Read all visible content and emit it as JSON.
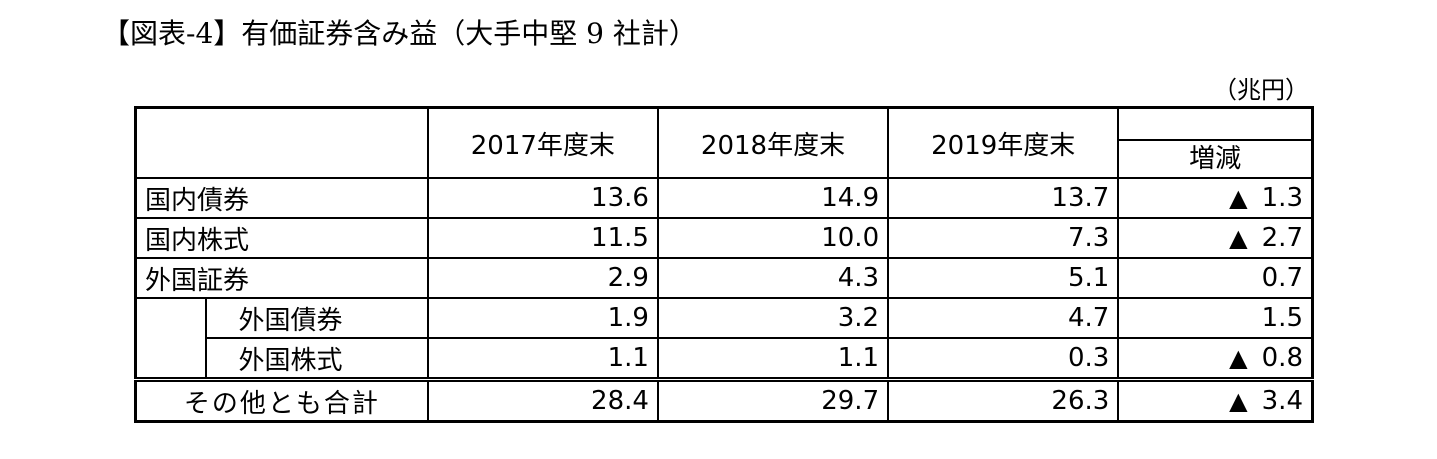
{
  "title": "【図表-4】有価証券含み益（大手中堅 9 社計）",
  "unit": "（兆円）",
  "table": {
    "headers": [
      "2017年度末",
      "2018年度末",
      "2019年度末",
      "増減"
    ],
    "rows": [
      {
        "label": "国内債券",
        "values": [
          "13.6",
          "14.9",
          "13.7"
        ],
        "change_marker": "▲",
        "change": "1.3"
      },
      {
        "label": "国内株式",
        "values": [
          "11.5",
          "10.0",
          "7.3"
        ],
        "change_marker": "▲",
        "change": "2.7"
      },
      {
        "label": "外国証券",
        "values": [
          "2.9",
          "4.3",
          "5.1"
        ],
        "change_marker": "",
        "change": "0.7"
      },
      {
        "label": "外国債券",
        "values": [
          "1.9",
          "3.2",
          "4.7"
        ],
        "change_marker": "",
        "change": "1.5"
      },
      {
        "label": "外国株式",
        "values": [
          "1.1",
          "1.1",
          "0.3"
        ],
        "change_marker": "▲",
        "change": "0.8"
      }
    ],
    "total": {
      "label": "その他とも合計",
      "values": [
        "28.4",
        "29.7",
        "26.3"
      ],
      "change_marker": "▲",
      "change": "3.4"
    }
  }
}
